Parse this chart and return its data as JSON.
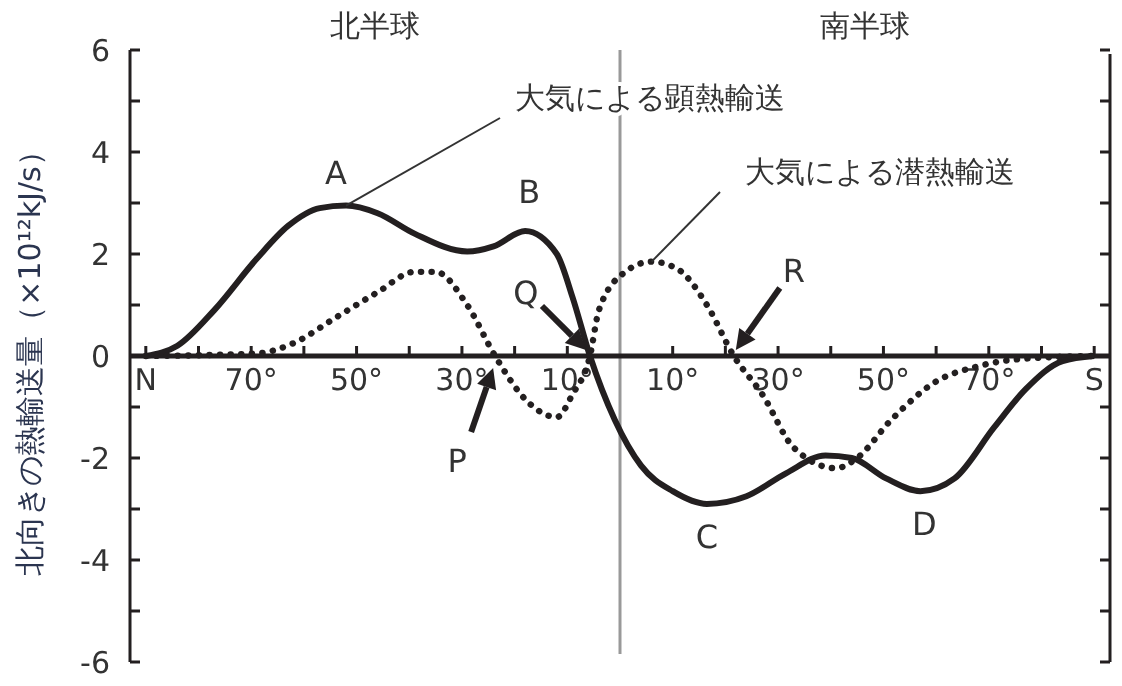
{
  "chart_data": {
    "type": "line",
    "ylabel": "北向きの熱輸送量（×10¹²kJ/s）",
    "xlim": [
      93,
      -93
    ],
    "ylim": [
      -6,
      6
    ],
    "xticks": [
      {
        "value": 90,
        "label": "N"
      },
      {
        "value": 80,
        "label": null
      },
      {
        "value": 70,
        "label": "70°"
      },
      {
        "value": 60,
        "label": null
      },
      {
        "value": 50,
        "label": "50°"
      },
      {
        "value": 40,
        "label": null
      },
      {
        "value": 30,
        "label": "30°"
      },
      {
        "value": 20,
        "label": null
      },
      {
        "value": 10,
        "label": "10°"
      },
      {
        "value": -10,
        "label": "10°"
      },
      {
        "value": -20,
        "label": null
      },
      {
        "value": -30,
        "label": "30°"
      },
      {
        "value": -40,
        "label": null
      },
      {
        "value": -50,
        "label": "50°"
      },
      {
        "value": -60,
        "label": null
      },
      {
        "value": -70,
        "label": "70°"
      },
      {
        "value": -80,
        "label": null
      },
      {
        "value": -90,
        "label": "S"
      }
    ],
    "yticks": [
      -6,
      {
        "value": -5,
        "label": null
      },
      -4,
      {
        "value": -3,
        "label": null
      },
      -2,
      {
        "value": -1,
        "label": null
      },
      0,
      {
        "value": 1,
        "label": null
      },
      2,
      {
        "value": 3,
        "label": null
      },
      4,
      {
        "value": 5,
        "label": null
      },
      6
    ],
    "grid": false,
    "marker": "none",
    "series": [
      {
        "name": "大気による顕熱輸送",
        "color": "#231f20",
        "line_style": "solid",
        "x": [
          90,
          84,
          77,
          69,
          63,
          57,
          52,
          46,
          39,
          29,
          24,
          18,
          12,
          9,
          5.7,
          1,
          -4,
          -10,
          -16.5,
          -24,
          -31.5,
          -39,
          -44,
          -50.5,
          -57,
          -63.5,
          -71,
          -77,
          -84,
          -90
        ],
        "values": [
          0,
          0.2,
          0.9,
          1.9,
          2.55,
          2.9,
          2.95,
          2.8,
          2.4,
          2.05,
          2.15,
          2.45,
          2.0,
          1.15,
          0,
          -1.25,
          -2.15,
          -2.65,
          -2.9,
          -2.75,
          -2.3,
          -1.95,
          -2.0,
          -2.4,
          -2.65,
          -2.4,
          -1.4,
          -0.65,
          -0.1,
          0
        ]
      },
      {
        "name": "大気による潜熱輸送",
        "color": "#231f20",
        "line_style": "dotted",
        "x": [
          90,
          69,
          62,
          54,
          46,
          39,
          35,
          29,
          23.7,
          17.5,
          12,
          9,
          5.7,
          4,
          -1,
          -6,
          -11,
          -16.5,
          -21.6,
          -27,
          -33,
          -41,
          -45,
          -51.5,
          -60,
          -68,
          -77,
          -90
        ],
        "values": [
          0,
          0.05,
          0.25,
          0.75,
          1.25,
          1.65,
          1.65,
          1.0,
          0,
          -0.9,
          -1.2,
          -0.75,
          0,
          0.9,
          1.65,
          1.85,
          1.7,
          1.0,
          0,
          -0.75,
          -1.8,
          -2.2,
          -2.0,
          -1.25,
          -0.5,
          -0.2,
          -0.05,
          0
        ]
      }
    ],
    "ref_lines": [
      {
        "axis": "x",
        "value": 0,
        "color": "#999999"
      }
    ],
    "annotations": [
      "北半球",
      "南半球",
      {
        "text": "A",
        "x": 52,
        "y": 2.95
      },
      {
        "text": "B",
        "x": 18,
        "y": 2.45
      },
      {
        "text": "C",
        "x": -16.5,
        "y": -2.9
      },
      {
        "text": "D",
        "x": -57,
        "y": -2.65
      },
      {
        "text": "P",
        "x": 23.7,
        "y": 0
      },
      {
        "text": "Q",
        "x": 5.7,
        "y": 0
      },
      {
        "text": "R",
        "x": -21.6,
        "y": 0
      }
    ]
  }
}
